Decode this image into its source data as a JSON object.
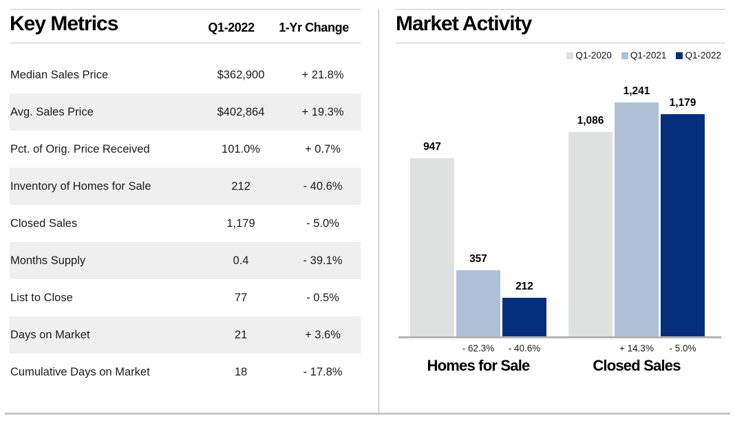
{
  "left_panel": {
    "title": "Key Metrics",
    "columns": [
      "Q1-2022",
      "1-Yr Change"
    ],
    "rows": [
      {
        "label": "Median Sales Price",
        "value": "$362,900",
        "change": "+ 21.8%"
      },
      {
        "label": "Avg. Sales Price",
        "value": "$402,864",
        "change": "+ 19.3%"
      },
      {
        "label": "Pct. of Orig. Price Received",
        "value": "101.0%",
        "change": "+ 0.7%"
      },
      {
        "label": "Inventory of Homes for Sale",
        "value": "212",
        "change": "- 40.6%"
      },
      {
        "label": "Closed Sales",
        "value": "1,179",
        "change": "- 5.0%"
      },
      {
        "label": "Months Supply",
        "value": "0.4",
        "change": "- 39.1%"
      },
      {
        "label": "List to Close",
        "value": "77",
        "change": "- 0.5%"
      },
      {
        "label": "Days on Market",
        "value": "21",
        "change": "+ 3.6%"
      },
      {
        "label": "Cumulative Days on Market",
        "value": "18",
        "change": "- 17.8%"
      }
    ]
  },
  "chart_data": {
    "type": "bar",
    "title": "Market Activity",
    "categories": [
      "Homes for Sale",
      "Closed Sales"
    ],
    "series": [
      {
        "name": "Q1-2020",
        "color": "#dde2e0",
        "values": [
          947,
          1086
        ],
        "labels": [
          "947",
          "1,086"
        ]
      },
      {
        "name": "Q1-2021",
        "color": "#aec0d6",
        "values": [
          357,
          1241
        ],
        "labels": [
          "357",
          "1,241"
        ]
      },
      {
        "name": "Q1-2022",
        "color": "#052f7d",
        "values": [
          212,
          1179
        ],
        "labels": [
          "212",
          "1,179"
        ]
      }
    ],
    "change_labels": [
      [
        "- 62.3%",
        "- 40.6%"
      ],
      [
        "+ 14.3%",
        "- 5.0%"
      ]
    ],
    "ylim": [
      0,
      1400
    ],
    "grid": false,
    "legend_position": "top-right"
  },
  "colors": {
    "row_shade": "#efefef",
    "rule": "#c8c8c8",
    "axis": "#b3b3b3",
    "q1_2020": "#dde2e0",
    "q1_2021": "#aec0d6",
    "q1_2022": "#052f7d"
  }
}
